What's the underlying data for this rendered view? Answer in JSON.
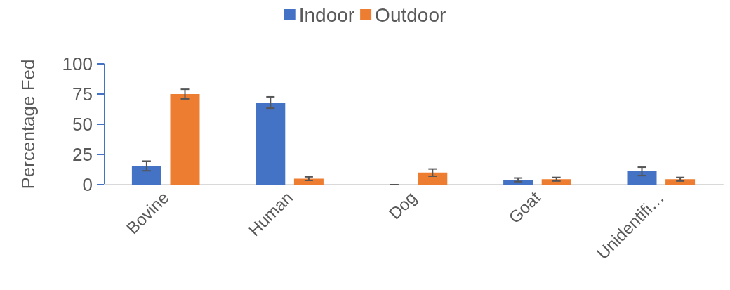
{
  "chart_data": {
    "type": "bar",
    "ylabel": "Percentage Fed",
    "categories": [
      "Bovine",
      "Human",
      "Dog",
      "Goat",
      "Unidentifi…"
    ],
    "series": [
      {
        "name": "Indoor",
        "color": "#4472c4",
        "values": [
          15.5,
          68,
          0,
          4,
          11
        ],
        "errors": [
          4,
          4.7,
          0,
          1.5,
          3.5
        ]
      },
      {
        "name": "Outdoor",
        "color": "#ed7d31",
        "values": [
          75,
          5,
          10,
          4.5,
          4.5
        ],
        "errors": [
          4,
          1.5,
          3,
          1.5,
          1.5
        ]
      }
    ],
    "ylim": [
      0,
      100
    ],
    "yticks": [
      0,
      25,
      50,
      75,
      100
    ],
    "grid": false,
    "legend": "top"
  }
}
